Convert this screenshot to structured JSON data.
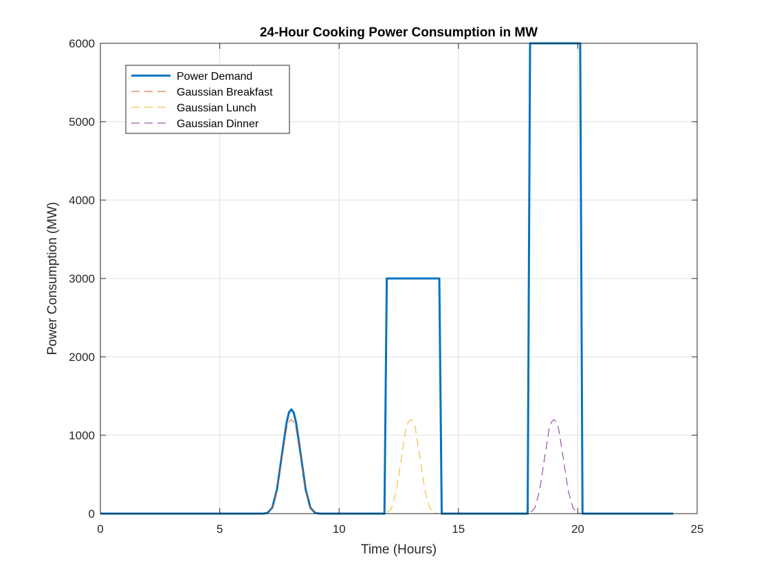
{
  "chart_data": {
    "type": "line",
    "title": "24-Hour Cooking Power Consumption in MW",
    "xlabel": "Time (Hours)",
    "ylabel": "Power Consumption (MW)",
    "xlim": [
      0,
      25
    ],
    "ylim": [
      0,
      6000
    ],
    "xticks": [
      0,
      5,
      10,
      15,
      20,
      25
    ],
    "yticks": [
      0,
      1000,
      2000,
      3000,
      4000,
      5000,
      6000
    ],
    "grid": true,
    "legend_position": "top-left",
    "series": [
      {
        "name": "Power Demand",
        "color": "#0072BD",
        "style": "solid",
        "x": [
          0,
          6.8,
          7.0,
          7.2,
          7.4,
          7.6,
          7.8,
          7.9,
          8.0,
          8.1,
          8.2,
          8.4,
          8.6,
          8.8,
          9.0,
          9.2,
          11.9,
          12.0,
          14.2,
          14.3,
          17.9,
          18.0,
          20.1,
          20.2,
          24
        ],
        "y": [
          0,
          0,
          8,
          75,
          310,
          740,
          1160,
          1290,
          1330,
          1290,
          1160,
          740,
          310,
          75,
          8,
          0,
          0,
          3000,
          3000,
          0,
          0,
          6000,
          6000,
          0,
          0
        ]
      },
      {
        "name": "Gaussian Breakfast",
        "color": "#D95319",
        "style": "dashed",
        "x": [
          0,
          6.8,
          7.0,
          7.2,
          7.4,
          7.6,
          7.8,
          7.9,
          8.0,
          8.1,
          8.2,
          8.4,
          8.6,
          8.8,
          9.0,
          9.2,
          24
        ],
        "y": [
          0,
          0,
          7,
          70,
          290,
          690,
          1080,
          1170,
          1200,
          1170,
          1080,
          690,
          290,
          70,
          7,
          0,
          0
        ]
      },
      {
        "name": "Gaussian Lunch",
        "color": "#EDB120",
        "style": "dashed",
        "x": [
          0,
          11.8,
          12.0,
          12.2,
          12.4,
          12.6,
          12.8,
          12.9,
          13.0,
          13.1,
          13.2,
          13.4,
          13.6,
          13.8,
          14.0,
          14.2,
          24
        ],
        "y": [
          0,
          0,
          7,
          70,
          290,
          690,
          1080,
          1170,
          1200,
          1170,
          1080,
          690,
          290,
          70,
          7,
          0,
          0
        ]
      },
      {
        "name": "Gaussian Dinner",
        "color": "#7E2F8E",
        "style": "dashed",
        "x": [
          0,
          17.8,
          18.0,
          18.2,
          18.4,
          18.6,
          18.8,
          18.9,
          19.0,
          19.1,
          19.2,
          19.4,
          19.6,
          19.8,
          20.0,
          20.2,
          24
        ],
        "y": [
          0,
          0,
          7,
          70,
          290,
          690,
          1080,
          1170,
          1200,
          1170,
          1080,
          690,
          290,
          70,
          7,
          0,
          0
        ]
      }
    ]
  }
}
